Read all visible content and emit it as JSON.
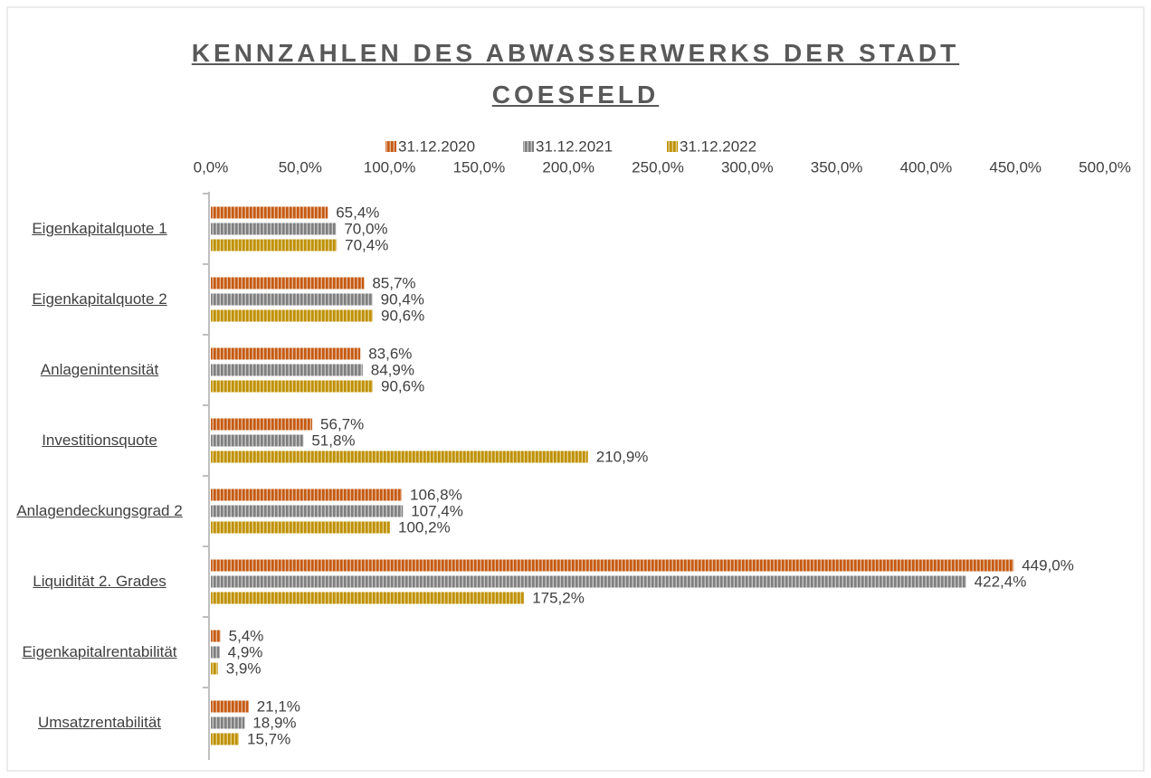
{
  "chart_data": {
    "type": "hbar",
    "title": "KENNZAHLEN DES ABWASSERWERKS DER STADT COESFELD",
    "categories": [
      "Eigenkapitalquote 1",
      "Eigenkapitalquote 2",
      "Anlagenintensität",
      "Investitionsquote",
      "Anlagendeckungsgrad 2",
      "Liquidität 2. Grades",
      "Eigenkapitalrentabilität",
      "Umsatzrentabilität"
    ],
    "series": [
      {
        "name": "31.12.2020",
        "color": "#c55a11",
        "values": [
          65.4,
          85.7,
          83.6,
          56.7,
          106.8,
          449.0,
          5.4,
          21.1
        ],
        "value_labels": [
          "65,4%",
          "85,7%",
          "83,6%",
          "56,7%",
          "106,8%",
          "449,0%",
          "5,4%",
          "21,1%"
        ]
      },
      {
        "name": "31.12.2021",
        "color": "#7f7f7f",
        "values": [
          70.0,
          90.4,
          84.9,
          51.8,
          107.4,
          422.4,
          4.9,
          18.9
        ],
        "value_labels": [
          "70,0%",
          "90,4%",
          "84,9%",
          "51,8%",
          "107,4%",
          "422,4%",
          "4,9%",
          "18,9%"
        ]
      },
      {
        "name": "31.12.2022",
        "color": "#bf9000",
        "values": [
          70.4,
          90.6,
          90.6,
          210.9,
          100.2,
          175.2,
          3.9,
          15.7
        ],
        "value_labels": [
          "70,4%",
          "90,6%",
          "90,6%",
          "210,9%",
          "100,2%",
          "175,2%",
          "3,9%",
          "15,7%"
        ]
      }
    ],
    "xlim": [
      0,
      500
    ],
    "xticks": [
      {
        "value": 0,
        "label": "0,0%"
      },
      {
        "value": 50,
        "label": "50,0%"
      },
      {
        "value": 100,
        "label": "100,0%"
      },
      {
        "value": 150,
        "label": "150,0%"
      },
      {
        "value": 200,
        "label": "200,0%"
      },
      {
        "value": 250,
        "label": "250,0%"
      },
      {
        "value": 300,
        "label": "300,0%"
      },
      {
        "value": 350,
        "label": "350,0%"
      },
      {
        "value": 400,
        "label": "400,0%"
      },
      {
        "value": 450,
        "label": "450,0%"
      },
      {
        "value": 500,
        "label": "500,0%"
      }
    ],
    "legend": "top",
    "grid": false
  }
}
